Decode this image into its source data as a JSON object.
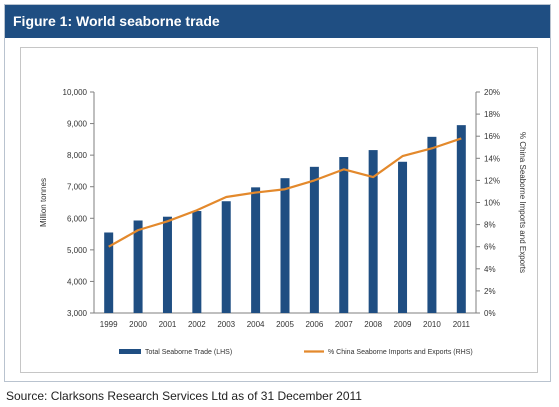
{
  "figure": {
    "title": "Figure 1: World seaborne trade",
    "source": "Source: Clarksons Research Services Ltd as of 31 December 2011"
  },
  "colors": {
    "bar": "#1f4e82",
    "line": "#e3892c",
    "title_bg": "#1f4e82"
  },
  "chart_data": {
    "type": "bar",
    "categories": [
      "1999",
      "2000",
      "2001",
      "2002",
      "2003",
      "2004",
      "2005",
      "2006",
      "2007",
      "2008",
      "2009",
      "2010",
      "2011"
    ],
    "series": [
      {
        "name": "Total Seaborne Trade (LHS)",
        "type": "bar",
        "axis": "left",
        "values": [
          5550,
          5930,
          6050,
          6230,
          6540,
          6980,
          7270,
          7630,
          7940,
          8160,
          7790,
          8580,
          8950
        ]
      },
      {
        "name": "% China Seaborne Imports and Exports (RHS)",
        "type": "line",
        "axis": "right",
        "values": [
          6.0,
          7.5,
          8.3,
          9.3,
          10.5,
          10.9,
          11.2,
          12.0,
          13.0,
          12.3,
          14.2,
          14.9,
          15.8
        ]
      }
    ],
    "ylabel_left": "Million tonnes",
    "ylabel_right": "% China Seaborne Imports and Exports",
    "ylim_left": [
      3000,
      10000
    ],
    "ylim_right": [
      0,
      20
    ],
    "yticks_left": [
      "3,000",
      "4,000",
      "5,000",
      "6,000",
      "7,000",
      "8,000",
      "9,000",
      "10,000"
    ],
    "yticks_right": [
      "0%",
      "2%",
      "4%",
      "6%",
      "8%",
      "10%",
      "12%",
      "14%",
      "16%",
      "18%",
      "20%"
    ],
    "legend_position": "bottom",
    "grid": false
  }
}
